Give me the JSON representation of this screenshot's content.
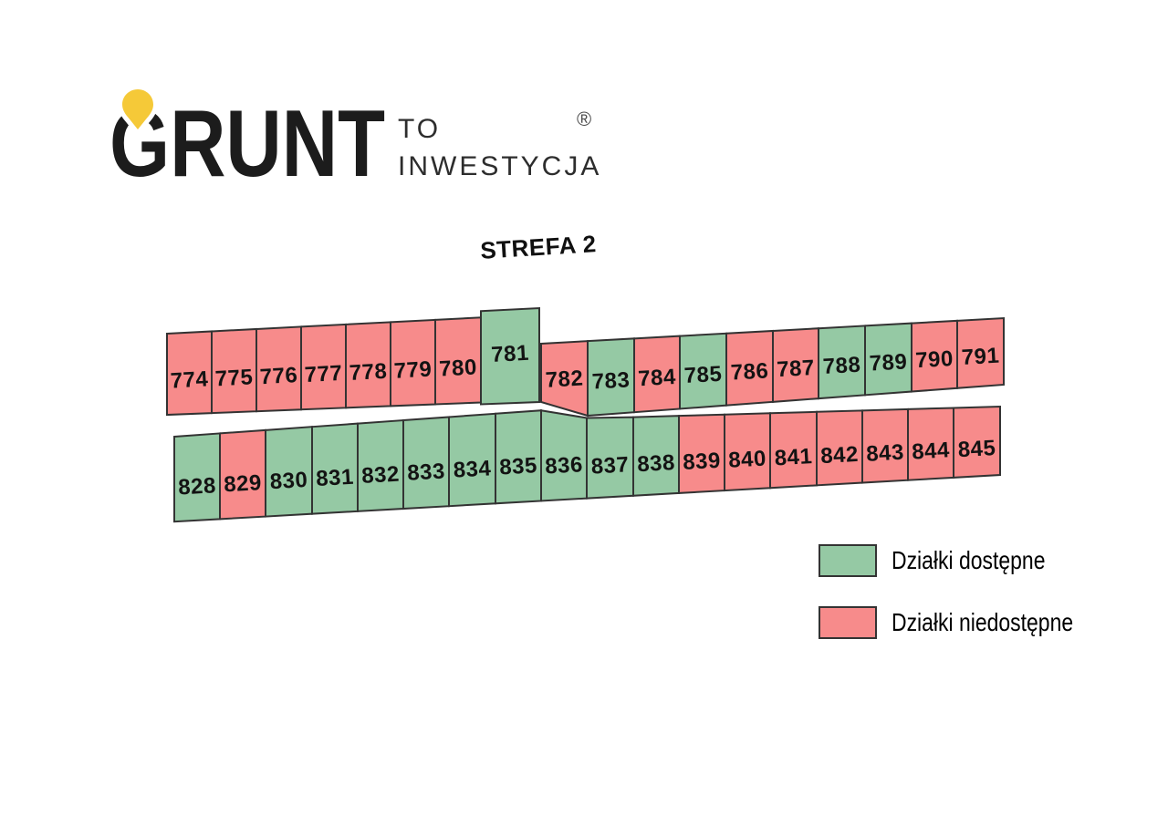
{
  "logo": {
    "brand": "GRUNT",
    "tagline_line1": "TO",
    "tagline_line2": "INWESTYCJA",
    "registered": "®",
    "pin_color": "#F5C938",
    "brand_color": "#1c1c1c",
    "tagline_color": "#2d2d2d",
    "registered_color": "#4a4a4a"
  },
  "title": "STREFA 2",
  "colors": {
    "available": "#95C9A4",
    "unavailable": "#F78B8B",
    "outline": "#333333",
    "label": "#131313"
  },
  "legend": {
    "items": [
      {
        "label": "Działki dostępne",
        "status": "available"
      },
      {
        "label": "Działki niedostępne",
        "status": "unavailable"
      }
    ]
  },
  "map": {
    "rows": [
      {
        "id": "row_774_781",
        "plots": [
          {
            "number": "774",
            "status": "unavailable"
          },
          {
            "number": "775",
            "status": "unavailable"
          },
          {
            "number": "776",
            "status": "unavailable"
          },
          {
            "number": "777",
            "status": "unavailable"
          },
          {
            "number": "778",
            "status": "unavailable"
          },
          {
            "number": "779",
            "status": "unavailable"
          },
          {
            "number": "780",
            "status": "unavailable"
          },
          {
            "number": "781",
            "status": "available"
          }
        ]
      },
      {
        "id": "row_782_791",
        "plots": [
          {
            "number": "782",
            "status": "unavailable"
          },
          {
            "number": "783",
            "status": "available"
          },
          {
            "number": "784",
            "status": "unavailable"
          },
          {
            "number": "785",
            "status": "available"
          },
          {
            "number": "786",
            "status": "unavailable"
          },
          {
            "number": "787",
            "status": "unavailable"
          },
          {
            "number": "788",
            "status": "available"
          },
          {
            "number": "789",
            "status": "available"
          },
          {
            "number": "790",
            "status": "unavailable"
          },
          {
            "number": "791",
            "status": "unavailable"
          }
        ]
      },
      {
        "id": "row_828_845",
        "plots": [
          {
            "number": "828",
            "status": "available"
          },
          {
            "number": "829",
            "status": "unavailable"
          },
          {
            "number": "830",
            "status": "available"
          },
          {
            "number": "831",
            "status": "available"
          },
          {
            "number": "832",
            "status": "available"
          },
          {
            "number": "833",
            "status": "available"
          },
          {
            "number": "834",
            "status": "available"
          },
          {
            "number": "835",
            "status": "available"
          },
          {
            "number": "836",
            "status": "available"
          },
          {
            "number": "837",
            "status": "available"
          },
          {
            "number": "838",
            "status": "available"
          },
          {
            "number": "839",
            "status": "unavailable"
          },
          {
            "number": "840",
            "status": "unavailable"
          },
          {
            "number": "841",
            "status": "unavailable"
          },
          {
            "number": "842",
            "status": "unavailable"
          },
          {
            "number": "843",
            "status": "unavailable"
          },
          {
            "number": "844",
            "status": "unavailable"
          },
          {
            "number": "845",
            "status": "unavailable"
          }
        ]
      }
    ]
  }
}
